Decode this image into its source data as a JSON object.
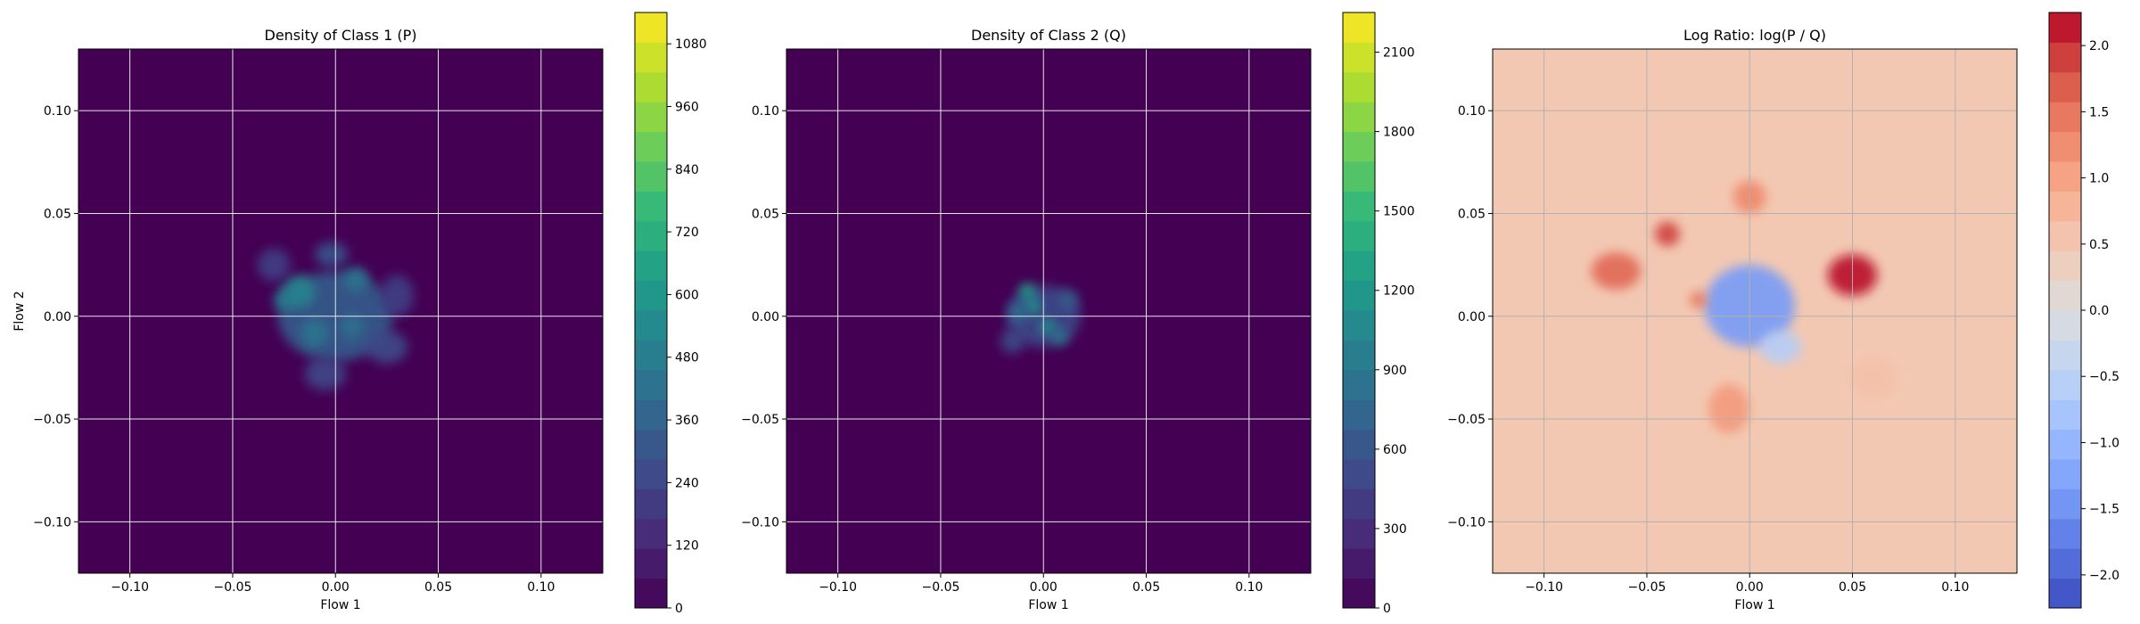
{
  "chart_data": [
    {
      "type": "heatmap",
      "title": "Density of Class 1 (P)",
      "xlabel": "Flow 1",
      "ylabel": "Flow 2",
      "xlim": [
        -0.125,
        0.13
      ],
      "ylim": [
        -0.125,
        0.13
      ],
      "x_ticks": [
        -0.1,
        -0.05,
        0.0,
        0.05,
        0.1
      ],
      "x_tick_labels": [
        "−0.10",
        "−0.05",
        "0.00",
        "0.05",
        "0.10"
      ],
      "y_ticks": [
        -0.1,
        -0.05,
        0.0,
        0.05,
        0.1
      ],
      "y_tick_labels": [
        "−0.10",
        "−0.05",
        "0.00",
        "0.05",
        "0.10"
      ],
      "grid": true,
      "colormap": "viridis",
      "colorbar_range": [
        0,
        1140
      ],
      "colorbar_ticks": [
        0,
        120,
        240,
        360,
        480,
        600,
        720,
        840,
        960,
        1080
      ],
      "colorbar_tick_labels": [
        "0",
        "120",
        "240",
        "360",
        "480",
        "600",
        "720",
        "840",
        "960",
        "1080"
      ],
      "hotspots": [
        {
          "x": 0.0,
          "y": 0.0,
          "sx": 0.028,
          "sy": 0.022,
          "value": 330
        },
        {
          "x": -0.018,
          "y": 0.012,
          "sx": 0.008,
          "sy": 0.008,
          "value": 520
        },
        {
          "x": -0.025,
          "y": 0.008,
          "sx": 0.005,
          "sy": 0.005,
          "value": 480
        },
        {
          "x": 0.01,
          "y": 0.018,
          "sx": 0.006,
          "sy": 0.006,
          "value": 450
        },
        {
          "x": -0.01,
          "y": -0.008,
          "sx": 0.007,
          "sy": 0.007,
          "value": 440
        },
        {
          "x": 0.008,
          "y": -0.005,
          "sx": 0.006,
          "sy": 0.006,
          "value": 420
        },
        {
          "x": -0.002,
          "y": 0.03,
          "sx": 0.008,
          "sy": 0.006,
          "value": 300
        },
        {
          "x": 0.025,
          "y": -0.015,
          "sx": 0.01,
          "sy": 0.008,
          "value": 260
        },
        {
          "x": -0.03,
          "y": 0.025,
          "sx": 0.008,
          "sy": 0.008,
          "value": 220
        },
        {
          "x": 0.03,
          "y": 0.01,
          "sx": 0.008,
          "sy": 0.01,
          "value": 220
        },
        {
          "x": -0.005,
          "y": -0.028,
          "sx": 0.01,
          "sy": 0.008,
          "value": 240
        }
      ]
    },
    {
      "type": "heatmap",
      "title": "Density of Class 2 (Q)",
      "xlabel": "Flow 1",
      "ylabel": "",
      "xlim": [
        -0.125,
        0.13
      ],
      "ylim": [
        -0.125,
        0.13
      ],
      "x_ticks": [
        -0.1,
        -0.05,
        0.0,
        0.05,
        0.1
      ],
      "x_tick_labels": [
        "−0.10",
        "−0.05",
        "0.00",
        "0.05",
        "0.10"
      ],
      "y_ticks": [
        -0.1,
        -0.05,
        0.0,
        0.05,
        0.1
      ],
      "y_tick_labels": [
        "−0.10",
        "−0.05",
        "0.00",
        "0.05",
        "0.10"
      ],
      "grid": true,
      "colormap": "viridis",
      "colorbar_range": [
        0,
        2250
      ],
      "colorbar_ticks": [
        0,
        300,
        600,
        900,
        1200,
        1500,
        1800,
        2100
      ],
      "colorbar_tick_labels": [
        "0",
        "300",
        "600",
        "900",
        "1200",
        "1500",
        "1800",
        "2100"
      ],
      "hotspots": [
        {
          "x": 0.0,
          "y": 0.0,
          "sx": 0.018,
          "sy": 0.015,
          "value": 500
        },
        {
          "x": -0.008,
          "y": 0.012,
          "sx": 0.004,
          "sy": 0.004,
          "value": 1300
        },
        {
          "x": -0.005,
          "y": 0.005,
          "sx": 0.004,
          "sy": 0.004,
          "value": 1200
        },
        {
          "x": 0.002,
          "y": -0.005,
          "sx": 0.004,
          "sy": 0.004,
          "value": 1150
        },
        {
          "x": 0.008,
          "y": -0.01,
          "sx": 0.004,
          "sy": 0.004,
          "value": 900
        },
        {
          "x": -0.012,
          "y": 0.002,
          "sx": 0.005,
          "sy": 0.005,
          "value": 800
        },
        {
          "x": 0.012,
          "y": 0.008,
          "sx": 0.005,
          "sy": 0.005,
          "value": 650
        },
        {
          "x": -0.015,
          "y": -0.012,
          "sx": 0.006,
          "sy": 0.006,
          "value": 500
        }
      ]
    },
    {
      "type": "heatmap",
      "title": "Log Ratio: log(P / Q)",
      "xlabel": "Flow 1",
      "ylabel": "",
      "xlim": [
        -0.125,
        0.13
      ],
      "ylim": [
        -0.125,
        0.13
      ],
      "x_ticks": [
        -0.1,
        -0.05,
        0.0,
        0.05,
        0.1
      ],
      "x_tick_labels": [
        "−0.10",
        "−0.05",
        "0.00",
        "0.05",
        "0.10"
      ],
      "y_ticks": [
        -0.1,
        -0.05,
        0.0,
        0.05,
        0.1
      ],
      "y_tick_labels": [
        "−0.10",
        "−0.05",
        "0.00",
        "0.05",
        "0.10"
      ],
      "grid": true,
      "colormap": "coolwarm",
      "background_value": 0.5,
      "colorbar_range": [
        -2.25,
        2.25
      ],
      "colorbar_ticks": [
        -2.0,
        -1.5,
        -1.0,
        -0.5,
        0.0,
        0.5,
        1.0,
        1.5,
        2.0
      ],
      "colorbar_tick_labels": [
        "−2.0",
        "−1.5",
        "−1.0",
        "−0.5",
        "0.0",
        "0.5",
        "1.0",
        "1.5",
        "2.0"
      ],
      "hotspots": [
        {
          "x": 0.0,
          "y": 0.005,
          "sx": 0.022,
          "sy": 0.02,
          "value": -1.4
        },
        {
          "x": 0.015,
          "y": -0.015,
          "sx": 0.01,
          "sy": 0.008,
          "value": -0.6
        },
        {
          "x": 0.05,
          "y": 0.02,
          "sx": 0.012,
          "sy": 0.01,
          "value": 2.2
        },
        {
          "x": -0.065,
          "y": 0.022,
          "sx": 0.012,
          "sy": 0.009,
          "value": 1.6
        },
        {
          "x": -0.04,
          "y": 0.04,
          "sx": 0.006,
          "sy": 0.006,
          "value": 1.9
        },
        {
          "x": 0.0,
          "y": 0.058,
          "sx": 0.008,
          "sy": 0.008,
          "value": 1.3
        },
        {
          "x": -0.025,
          "y": 0.008,
          "sx": 0.004,
          "sy": 0.004,
          "value": 1.5
        },
        {
          "x": -0.01,
          "y": -0.045,
          "sx": 0.01,
          "sy": 0.012,
          "value": 1.1
        },
        {
          "x": 0.06,
          "y": -0.03,
          "sx": 0.012,
          "sy": 0.01,
          "value": 0.6
        }
      ]
    }
  ]
}
